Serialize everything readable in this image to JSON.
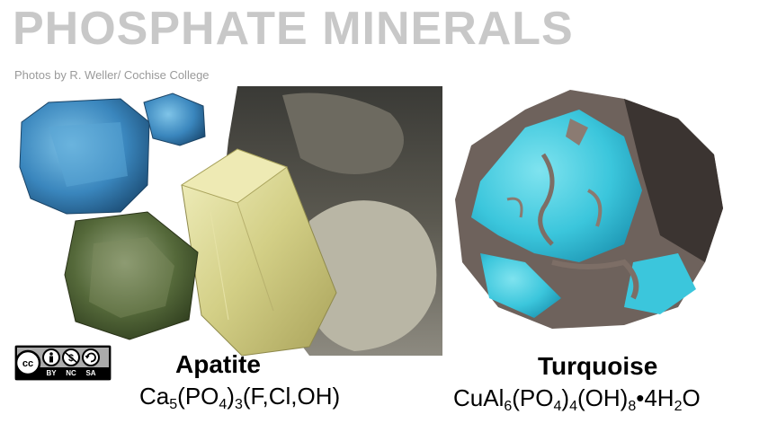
{
  "title": "PHOSPHATE MINERALS",
  "credit": "Photos by R. Weller/ Cochise College",
  "license": {
    "c1": "BY",
    "c2": "NC",
    "c3": "SA",
    "icons": [
      "cc-icon",
      "person-icon",
      "no-dollar-icon",
      "share-alike-icon"
    ]
  },
  "minerals": [
    {
      "name": "Apatite",
      "formula": [
        {
          "t": "Ca"
        },
        {
          "s": "5"
        },
        {
          "t": "(PO"
        },
        {
          "s": "4"
        },
        {
          "t": ")"
        },
        {
          "s": "3"
        },
        {
          "t": "(F,Cl,OH)"
        }
      ]
    },
    {
      "name": "Turquoise",
      "formula": [
        {
          "t": "CuAl"
        },
        {
          "s": "6"
        },
        {
          "t": "(PO"
        },
        {
          "s": "4"
        },
        {
          "t": ")"
        },
        {
          "s": "4"
        },
        {
          "t": "(OH)"
        },
        {
          "s": "8"
        },
        {
          "t": "•4H"
        },
        {
          "s": "2"
        },
        {
          "t": "O"
        }
      ]
    }
  ],
  "colors": {
    "title": "#c8c8c8",
    "credit": "#9a9a9a",
    "apatite_blue": "#3f8ec4",
    "apatite_green": "#5a6e3a",
    "apatite_yellow": "#d9d69a",
    "turquoise": "#3bc6dc",
    "matrix": "#6e625c"
  }
}
